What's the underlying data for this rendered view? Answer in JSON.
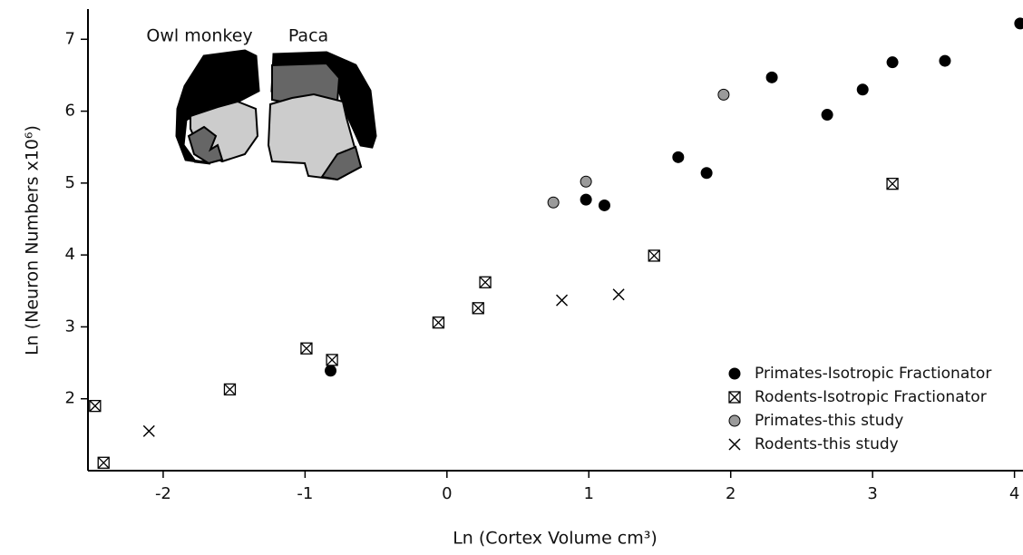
{
  "chart_data": {
    "type": "scatter",
    "x_label": "Ln (Cortex Volume cm³)",
    "y_label": "Ln (Neuron Numbers x10⁶)",
    "annotations": [
      "Owl monkey",
      "Paca"
    ],
    "xlim": [
      -2.53,
      4.06
    ],
    "ylim": [
      1.0,
      7.42
    ],
    "xticks": [
      -2,
      -1,
      0,
      1,
      2,
      3,
      4
    ],
    "yticks": [
      2,
      3,
      4,
      5,
      6,
      7
    ],
    "legend": "bottom-right",
    "series": [
      {
        "name": "Primates-Isotropic Fractionator",
        "color": "#000000",
        "marker": "circle",
        "x": [
          -0.82,
          0.98,
          1.11,
          1.63,
          1.83,
          2.29,
          2.68,
          2.93,
          3.14,
          3.51,
          4.04
        ],
        "values": [
          2.39,
          4.77,
          4.69,
          5.36,
          5.14,
          6.47,
          5.95,
          6.3,
          6.68,
          6.7,
          7.22
        ]
      },
      {
        "name": "Rodents-Isotropic Fractionator",
        "color": "#000000",
        "marker": "boxed-x",
        "x": [
          -2.48,
          -2.42,
          -1.53,
          -0.99,
          -0.81,
          -0.06,
          0.22,
          0.27,
          1.46,
          3.14
        ],
        "values": [
          1.9,
          1.11,
          2.13,
          2.7,
          2.54,
          3.06,
          3.26,
          3.62,
          3.99,
          4.99
        ]
      },
      {
        "name": "Primates-this study",
        "color": "#9a9a9a",
        "marker": "circle",
        "x": [
          0.75,
          0.98,
          1.95
        ],
        "values": [
          4.73,
          5.02,
          6.23
        ]
      },
      {
        "name": "Rodents-this study",
        "color": "#000000",
        "marker": "x",
        "x": [
          -2.1,
          0.81,
          1.21
        ],
        "values": [
          1.55,
          3.37,
          3.45
        ]
      }
    ]
  }
}
